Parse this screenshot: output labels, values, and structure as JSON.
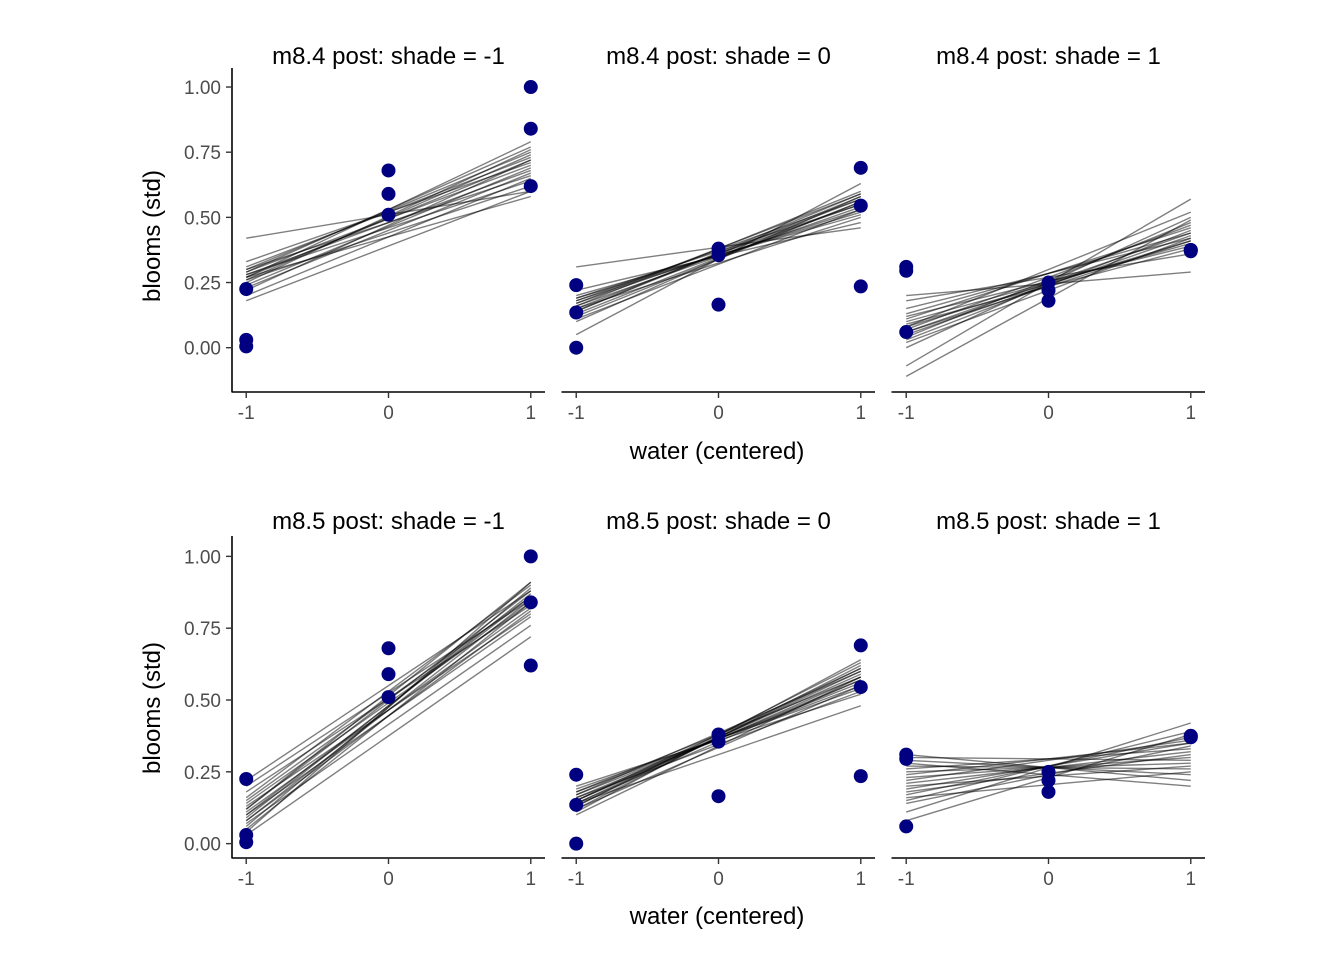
{
  "figure": {
    "ylabel": "blooms (std)",
    "xlabel": "water (centered)",
    "colors": {
      "points": "#000080",
      "lines": "#000000",
      "line_alpha": 0.5
    }
  },
  "chart_data": [
    {
      "type": "scatter",
      "title": "m8.4 post: shade = -1",
      "xlabel": "water (centered)",
      "ylabel": "blooms (std)",
      "xlim": [
        -1.1,
        1.1
      ],
      "ylim": [
        -0.17,
        1.05
      ],
      "xticks": [
        "-1",
        "0",
        "1"
      ],
      "xtick_values": [
        -1,
        0,
        1
      ],
      "yticks": [
        "0.00",
        "0.25",
        "0.50",
        "0.75",
        "1.00"
      ],
      "ytick_values": [
        0,
        0.25,
        0.5,
        0.75,
        1
      ],
      "points": {
        "x": [
          -1,
          -1,
          -1,
          0,
          0,
          0,
          1,
          1,
          1
        ],
        "y": [
          0.225,
          0.03,
          0.005,
          0.68,
          0.59,
          0.51,
          1.0,
          0.84,
          0.62
        ]
      },
      "lines": [
        [
          0.27,
          0.72
        ],
        [
          0.29,
          0.7
        ],
        [
          0.26,
          0.74
        ],
        [
          0.28,
          0.68
        ],
        [
          0.25,
          0.76
        ],
        [
          0.3,
          0.66
        ],
        [
          0.22,
          0.72
        ],
        [
          0.31,
          0.73
        ],
        [
          0.24,
          0.69
        ],
        [
          0.27,
          0.79
        ],
        [
          0.42,
          0.6
        ],
        [
          0.28,
          0.64
        ],
        [
          0.2,
          0.65
        ],
        [
          0.33,
          0.71
        ],
        [
          0.26,
          0.62
        ],
        [
          0.29,
          0.77
        ],
        [
          0.23,
          0.67
        ],
        [
          0.18,
          0.6
        ],
        [
          0.3,
          0.75
        ],
        [
          0.27,
          0.58
        ]
      ]
    },
    {
      "type": "scatter",
      "title": "m8.4 post: shade = 0",
      "xlabel": "water (centered)",
      "ylabel": "blooms (std)",
      "xlim": [
        -1.1,
        1.1
      ],
      "ylim": [
        -0.17,
        1.05
      ],
      "xticks": [
        "-1",
        "0",
        "1"
      ],
      "xtick_values": [
        -1,
        0,
        1
      ],
      "yticks": [
        "0.00",
        "0.25",
        "0.50",
        "0.75",
        "1.00"
      ],
      "ytick_values": [
        0,
        0.25,
        0.5,
        0.75,
        1
      ],
      "points": {
        "x": [
          -1,
          -1,
          -1,
          0,
          0,
          0,
          1,
          1,
          1
        ],
        "y": [
          0.24,
          0.135,
          0.0,
          0.38,
          0.355,
          0.165,
          0.69,
          0.545,
          0.235
        ]
      },
      "lines": [
        [
          0.17,
          0.55
        ],
        [
          0.15,
          0.57
        ],
        [
          0.19,
          0.52
        ],
        [
          0.14,
          0.58
        ],
        [
          0.16,
          0.54
        ],
        [
          0.18,
          0.53
        ],
        [
          0.13,
          0.56
        ],
        [
          0.2,
          0.51
        ],
        [
          0.17,
          0.59
        ],
        [
          0.31,
          0.46
        ],
        [
          0.05,
          0.63
        ],
        [
          0.15,
          0.5
        ],
        [
          0.22,
          0.48
        ],
        [
          0.12,
          0.56
        ],
        [
          0.16,
          0.6
        ],
        [
          0.19,
          0.55
        ],
        [
          0.11,
          0.53
        ],
        [
          0.14,
          0.59
        ],
        [
          0.18,
          0.57
        ],
        [
          0.1,
          0.58
        ]
      ]
    },
    {
      "type": "scatter",
      "title": "m8.4 post: shade = 1",
      "xlabel": "water (centered)",
      "ylabel": "blooms (std)",
      "xlim": [
        -1.1,
        1.1
      ],
      "ylim": [
        -0.17,
        1.05
      ],
      "xticks": [
        "-1",
        "0",
        "1"
      ],
      "xtick_values": [
        -1,
        0,
        1
      ],
      "yticks": [
        "0.00",
        "0.25",
        "0.50",
        "0.75",
        "1.00"
      ],
      "ytick_values": [
        0,
        0.25,
        0.5,
        0.75,
        1
      ],
      "points": {
        "x": [
          -1,
          -1,
          -1,
          0,
          0,
          0,
          1,
          1,
          1
        ],
        "y": [
          0.31,
          0.295,
          0.06,
          0.25,
          0.22,
          0.18,
          0.375,
          0.375,
          0.37
        ]
      },
      "lines": [
        [
          0.05,
          0.43
        ],
        [
          0.08,
          0.41
        ],
        [
          0.03,
          0.45
        ],
        [
          0.1,
          0.4
        ],
        [
          0.06,
          0.44
        ],
        [
          0.02,
          0.42
        ],
        [
          0.12,
          0.39
        ],
        [
          0.07,
          0.47
        ],
        [
          0.2,
          0.29
        ],
        [
          -0.07,
          0.57
        ],
        [
          0.04,
          0.48
        ],
        [
          0.11,
          0.46
        ],
        [
          0.15,
          0.42
        ],
        [
          0.09,
          0.38
        ],
        [
          0.0,
          0.5
        ],
        [
          0.13,
          0.44
        ],
        [
          0.18,
          0.36
        ],
        [
          -0.11,
          0.49
        ],
        [
          0.06,
          0.41
        ],
        [
          0.08,
          0.52
        ]
      ]
    },
    {
      "type": "scatter",
      "title": "m8.5 post: shade = -1",
      "xlabel": "water (centered)",
      "ylabel": "blooms (std)",
      "xlim": [
        -1.1,
        1.1
      ],
      "ylim": [
        -0.05,
        1.05
      ],
      "xticks": [
        "-1",
        "0",
        "1"
      ],
      "xtick_values": [
        -1,
        0,
        1
      ],
      "yticks": [
        "0.00",
        "0.25",
        "0.50",
        "0.75",
        "1.00"
      ],
      "ytick_values": [
        0,
        0.25,
        0.5,
        0.75,
        1
      ],
      "points": {
        "x": [
          -1,
          -1,
          -1,
          0,
          0,
          0,
          1,
          1,
          1
        ],
        "y": [
          0.225,
          0.03,
          0.005,
          0.68,
          0.59,
          0.51,
          1.0,
          0.84,
          0.62
        ]
      },
      "lines": [
        [
          0.1,
          0.86
        ],
        [
          0.12,
          0.88
        ],
        [
          0.08,
          0.85
        ],
        [
          0.14,
          0.84
        ],
        [
          0.06,
          0.89
        ],
        [
          0.11,
          0.82
        ],
        [
          0.16,
          0.9
        ],
        [
          0.09,
          0.87
        ],
        [
          0.04,
          0.91
        ],
        [
          0.13,
          0.8
        ],
        [
          0.18,
          0.83
        ],
        [
          0.22,
          0.88
        ],
        [
          0.07,
          0.76
        ],
        [
          0.03,
          0.72
        ],
        [
          0.15,
          0.86
        ],
        [
          0.1,
          0.79
        ],
        [
          0.05,
          0.84
        ],
        [
          0.12,
          0.91
        ],
        [
          0.08,
          0.81
        ],
        [
          0.2,
          0.85
        ]
      ]
    },
    {
      "type": "scatter",
      "title": "m8.5 post: shade = 0",
      "xlabel": "water (centered)",
      "ylabel": "blooms (std)",
      "xlim": [
        -1.1,
        1.1
      ],
      "ylim": [
        -0.05,
        1.05
      ],
      "xticks": [
        "-1",
        "0",
        "1"
      ],
      "xtick_values": [
        -1,
        0,
        1
      ],
      "yticks": [
        "0.00",
        "0.25",
        "0.50",
        "0.75",
        "1.00"
      ],
      "ytick_values": [
        0,
        0.25,
        0.5,
        0.75,
        1
      ],
      "points": {
        "x": [
          -1,
          -1,
          -1,
          0,
          0,
          0,
          1,
          1,
          1
        ],
        "y": [
          0.24,
          0.135,
          0.0,
          0.38,
          0.355,
          0.165,
          0.69,
          0.545,
          0.235
        ]
      },
      "lines": [
        [
          0.15,
          0.58
        ],
        [
          0.14,
          0.6
        ],
        [
          0.17,
          0.56
        ],
        [
          0.13,
          0.61
        ],
        [
          0.16,
          0.57
        ],
        [
          0.18,
          0.55
        ],
        [
          0.12,
          0.62
        ],
        [
          0.19,
          0.54
        ],
        [
          0.15,
          0.59
        ],
        [
          0.11,
          0.64
        ],
        [
          0.2,
          0.52
        ],
        [
          0.14,
          0.57
        ],
        [
          0.17,
          0.6
        ],
        [
          0.1,
          0.58
        ],
        [
          0.16,
          0.53
        ],
        [
          0.13,
          0.63
        ],
        [
          0.18,
          0.58
        ],
        [
          0.12,
          0.55
        ],
        [
          0.15,
          0.61
        ],
        [
          0.14,
          0.48
        ]
      ]
    },
    {
      "type": "scatter",
      "title": "m8.5 post: shade = 1",
      "xlabel": "water (centered)",
      "ylabel": "blooms (std)",
      "xlim": [
        -1.1,
        1.1
      ],
      "ylim": [
        -0.05,
        1.05
      ],
      "xticks": [
        "-1",
        "0",
        "1"
      ],
      "xtick_values": [
        -1,
        0,
        1
      ],
      "yticks": [
        "0.00",
        "0.25",
        "0.50",
        "0.75",
        "1.00"
      ],
      "ytick_values": [
        0,
        0.25,
        0.5,
        0.75,
        1
      ],
      "points": {
        "x": [
          -1,
          -1,
          -1,
          0,
          0,
          0,
          1,
          1,
          1
        ],
        "y": [
          0.31,
          0.295,
          0.06,
          0.25,
          0.22,
          0.18,
          0.375,
          0.375,
          0.37
        ]
      },
      "lines": [
        [
          0.23,
          0.3
        ],
        [
          0.21,
          0.32
        ],
        [
          0.25,
          0.28
        ],
        [
          0.19,
          0.35
        ],
        [
          0.27,
          0.26
        ],
        [
          0.17,
          0.37
        ],
        [
          0.29,
          0.24
        ],
        [
          0.15,
          0.39
        ],
        [
          0.31,
          0.22
        ],
        [
          0.11,
          0.42
        ],
        [
          0.08,
          0.38
        ],
        [
          0.26,
          0.33
        ],
        [
          0.2,
          0.27
        ],
        [
          0.24,
          0.35
        ],
        [
          0.18,
          0.31
        ],
        [
          0.28,
          0.2
        ],
        [
          0.22,
          0.36
        ],
        [
          0.14,
          0.34
        ],
        [
          0.3,
          0.29
        ],
        [
          0.16,
          0.25
        ]
      ]
    }
  ]
}
